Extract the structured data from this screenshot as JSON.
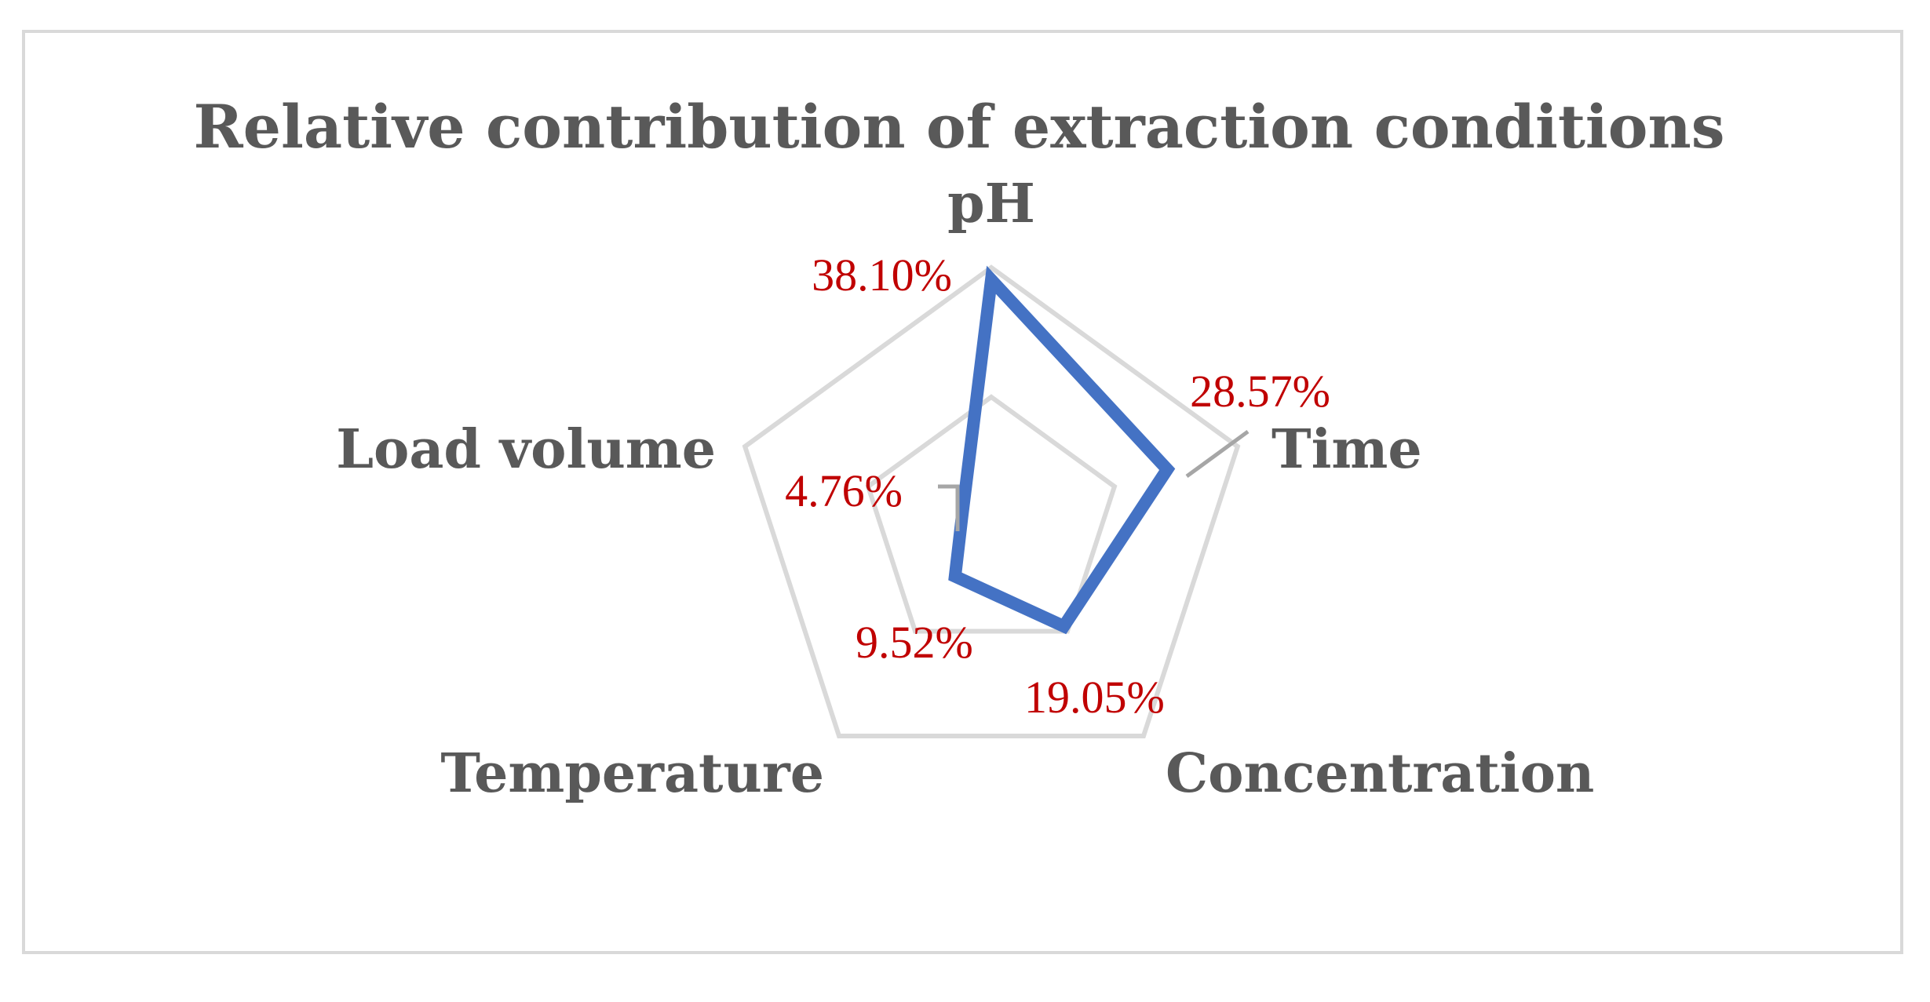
{
  "chart_data": {
    "type": "radar",
    "title": "Relative contribution of extraction conditions",
    "categories": [
      "pH",
      "Time",
      "Concentration",
      "Temperature",
      "Load volume"
    ],
    "series": [
      {
        "values": [
          38.1,
          28.57,
          19.05,
          9.52,
          4.76
        ],
        "labels": [
          "38.10%",
          "28.57%",
          "19.05%",
          "9.52%",
          "4.76%"
        ]
      }
    ],
    "rlim": [
      0,
      40
    ],
    "gridlines": [
      0,
      20,
      40
    ],
    "grid": true,
    "legend": "none",
    "colors": {
      "series": "#4472c4",
      "data_labels": "#c00000",
      "axis_labels": "#595959",
      "gridlines": "#d9d9d9",
      "frame": "#d9d9d9"
    }
  }
}
